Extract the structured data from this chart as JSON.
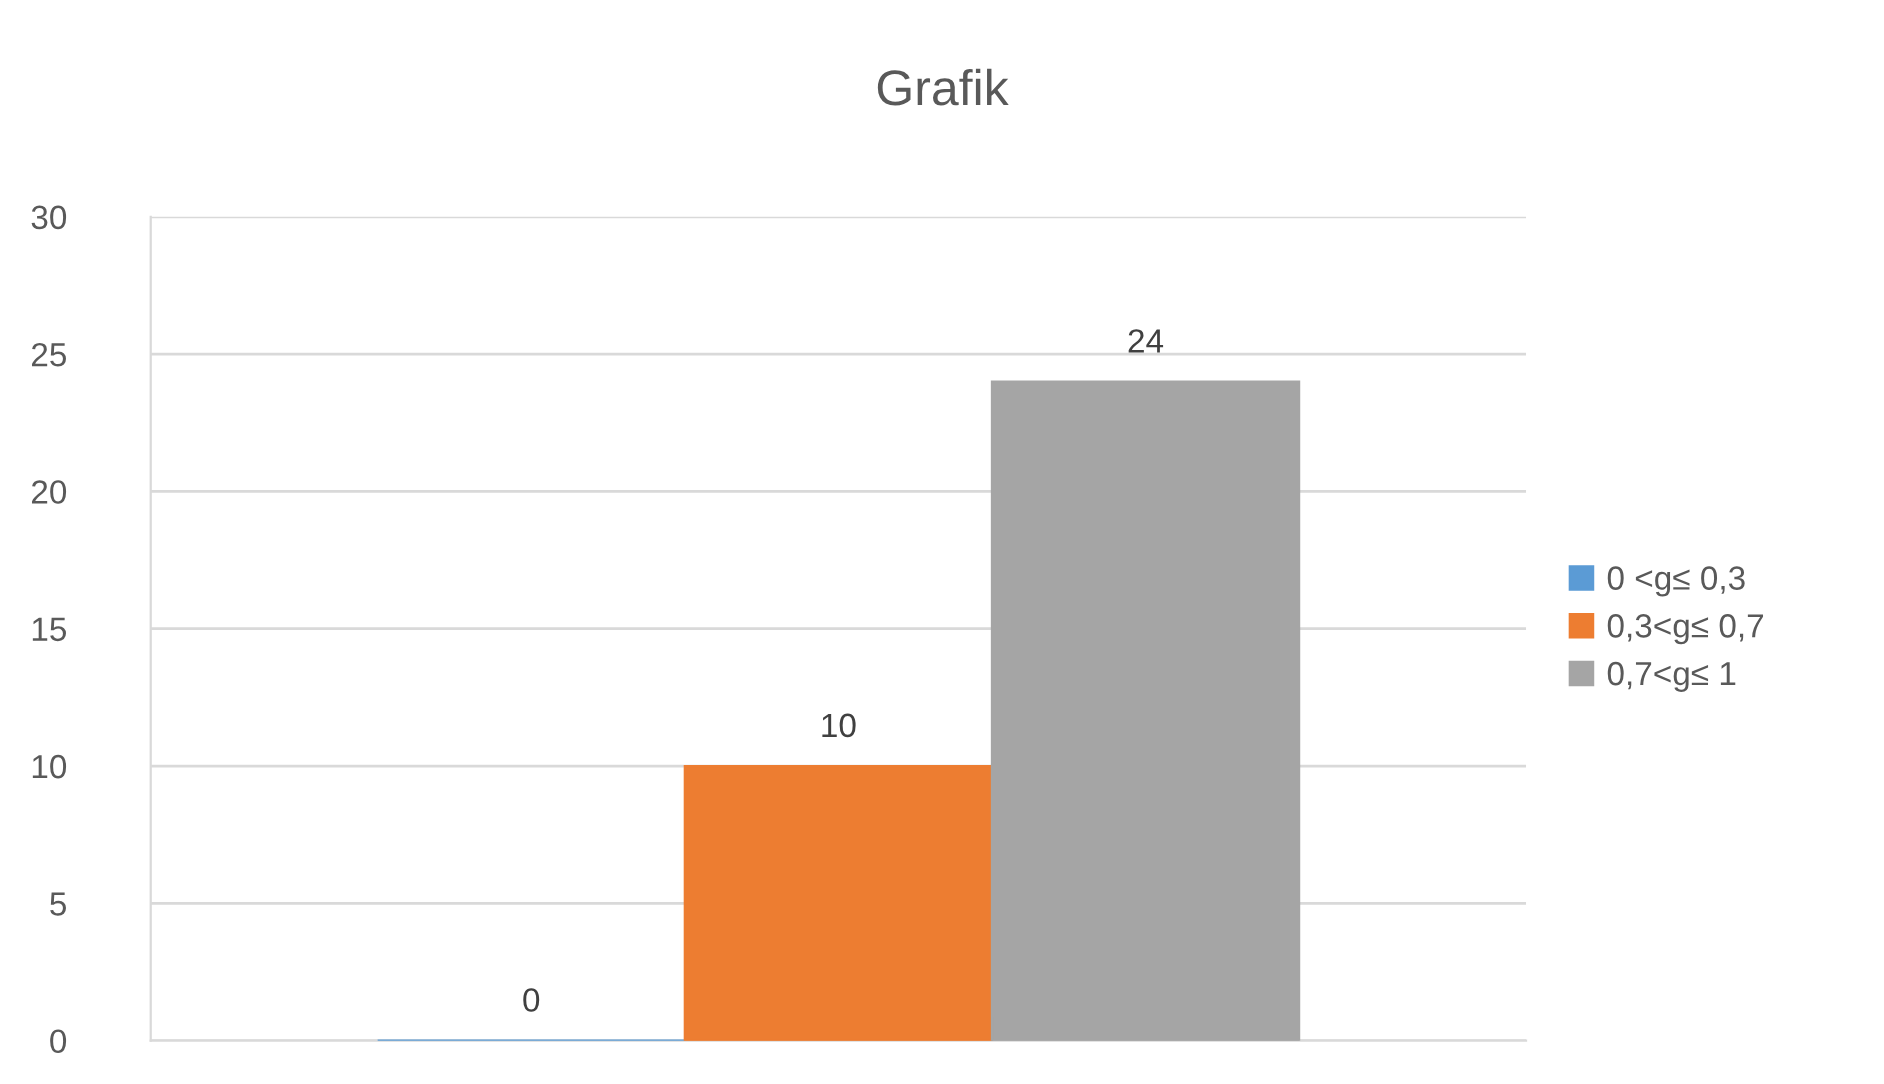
{
  "chart_data": {
    "type": "bar",
    "title": "Grafik",
    "categories": [
      null
    ],
    "series": [
      {
        "name": "0 <g≤ 0,3",
        "color": "#5b9bd5",
        "values": [
          0
        ]
      },
      {
        "name": "0,3<g≤ 0,7",
        "color": "#ed7d31",
        "values": [
          10
        ]
      },
      {
        "name": "0,7<g≤ 1",
        "color": "#a5a5a5",
        "values": [
          24
        ]
      }
    ],
    "ylim": [
      0,
      30
    ],
    "yticks": [
      0,
      5,
      10,
      15,
      20,
      25,
      30
    ],
    "grid": "y",
    "legend": "right",
    "data_labels": true
  }
}
